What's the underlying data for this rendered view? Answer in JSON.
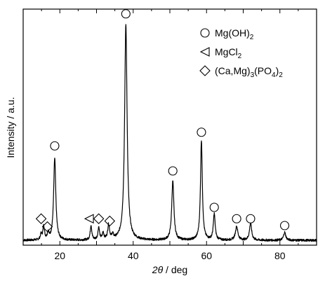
{
  "chart_data": {
    "type": "line",
    "title": "",
    "xlabel": {
      "italic": "2θ",
      "rest": " / deg"
    },
    "ylabel": "Intensity / a.u.",
    "xlim": [
      10,
      90
    ],
    "ylim": [
      0,
      100
    ],
    "x_ticks": [
      20,
      40,
      60,
      80
    ],
    "y_ticks_labeled": false,
    "grid": false,
    "legend": {
      "placement": "top-right",
      "entries": [
        {
          "marker": "circle",
          "parts": [
            [
              "Mg(OH)",
              "n"
            ],
            [
              "2",
              "sub"
            ]
          ]
        },
        {
          "marker": "triangle-left",
          "parts": [
            [
              "MgCl",
              "n"
            ],
            [
              "2",
              "sub"
            ]
          ]
        },
        {
          "marker": "diamond",
          "parts": [
            [
              "(Ca,Mg)",
              "n"
            ],
            [
              "3",
              "sub"
            ],
            [
              "(PO",
              "n"
            ],
            [
              "4",
              "sub"
            ],
            [
              ")",
              "n"
            ],
            [
              "2",
              "sub"
            ]
          ]
        }
      ]
    },
    "series": [
      {
        "baseline": 1.5,
        "peaks": [
          {
            "x": 14.9,
            "height": 2.5,
            "width": 0.25
          },
          {
            "x": 15.6,
            "height": 6.0,
            "width": 0.25
          },
          {
            "x": 16.8,
            "height": 3.0,
            "width": 0.25
          },
          {
            "x": 18.6,
            "height": 36.0,
            "width": 0.35
          },
          {
            "x": 28.5,
            "height": 6.5,
            "width": 0.25
          },
          {
            "x": 30.6,
            "height": 5.5,
            "width": 0.25
          },
          {
            "x": 31.8,
            "height": 3.0,
            "width": 0.25
          },
          {
            "x": 33.3,
            "height": 6.5,
            "width": 0.3
          },
          {
            "x": 34.4,
            "height": 2.0,
            "width": 0.25
          },
          {
            "x": 38.0,
            "height": 95.0,
            "width": 0.4
          },
          {
            "x": 50.8,
            "height": 26.0,
            "width": 0.35
          },
          {
            "x": 58.6,
            "height": 44.0,
            "width": 0.3
          },
          {
            "x": 62.1,
            "height": 11.5,
            "width": 0.3
          },
          {
            "x": 68.2,
            "height": 6.0,
            "width": 0.4
          },
          {
            "x": 72.0,
            "height": 7.5,
            "width": 0.35
          },
          {
            "x": 81.3,
            "height": 3.5,
            "width": 0.35
          }
        ]
      }
    ],
    "annotations": [
      {
        "marker": "circle",
        "x": 18.6,
        "y": 43
      },
      {
        "marker": "circle",
        "x": 38.0,
        "y": 101
      },
      {
        "marker": "circle",
        "x": 50.8,
        "y": 32
      },
      {
        "marker": "circle",
        "x": 58.6,
        "y": 49
      },
      {
        "marker": "circle",
        "x": 62.1,
        "y": 16
      },
      {
        "marker": "circle",
        "x": 68.2,
        "y": 11
      },
      {
        "marker": "circle",
        "x": 72.0,
        "y": 11
      },
      {
        "marker": "circle",
        "x": 81.3,
        "y": 8
      },
      {
        "marker": "triangle-left",
        "x": 28.0,
        "y": 11
      },
      {
        "marker": "diamond",
        "x": 14.9,
        "y": 11
      },
      {
        "marker": "diamond",
        "x": 16.6,
        "y": 7.5
      },
      {
        "marker": "diamond",
        "x": 30.6,
        "y": 11
      },
      {
        "marker": "diamond",
        "x": 33.6,
        "y": 10
      }
    ]
  }
}
